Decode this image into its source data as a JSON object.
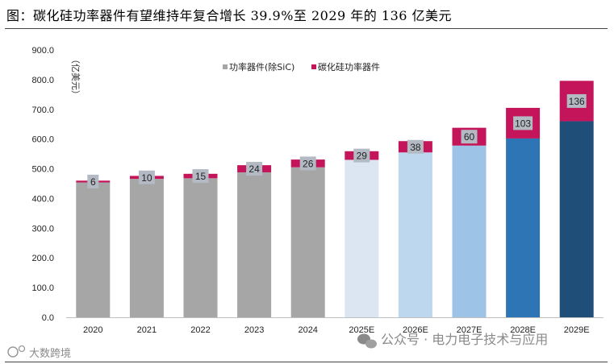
{
  "title": "图：碳化硅功率器件有望维持年复合增长 39.9%至 2029 年的 136 亿美元",
  "y_unit": "（亿美元）",
  "watermarks": {
    "left": "大数跨境",
    "right": "公众号 · 电力电子技术与应用"
  },
  "colors": {
    "sic": "#C4145A",
    "other_actual": "#A6A6A6",
    "label_box": "#B4BAC4"
  },
  "chart_data": {
    "type": "bar",
    "stacked": true,
    "categories": [
      "2020",
      "2021",
      "2022",
      "2023",
      "2024",
      "2025E",
      "2026E",
      "2027E",
      "2028E",
      "2029E"
    ],
    "series": [
      {
        "name": "功率器件(除SiC)",
        "values": [
          454,
          466,
          468,
          488,
          505,
          530,
          555,
          578,
          602,
          660
        ],
        "colors": [
          "#A6A6A6",
          "#A6A6A6",
          "#A6A6A6",
          "#A6A6A6",
          "#A6A6A6",
          "#DCE6F2",
          "#BDD7EE",
          "#9DC3E6",
          "#2E75B6",
          "#1F4E79"
        ]
      },
      {
        "name": "碳化硅功率器件",
        "values": [
          6,
          10,
          15,
          24,
          26,
          29,
          38,
          60,
          103,
          136
        ],
        "color": "#C4145A"
      }
    ],
    "data_labels": [
      "6",
      "10",
      "15",
      "24",
      "26",
      "29",
      "38",
      "60",
      "103",
      "136"
    ],
    "y_tick_labels": [
      "0.0",
      "100.0",
      "200.0",
      "300.0",
      "400.0",
      "500.0",
      "600.0",
      "700.0",
      "800.0",
      "900.0"
    ],
    "ylim": [
      0,
      900
    ],
    "ylabel": "（亿美元）",
    "legend_position": "top",
    "grid": false
  }
}
